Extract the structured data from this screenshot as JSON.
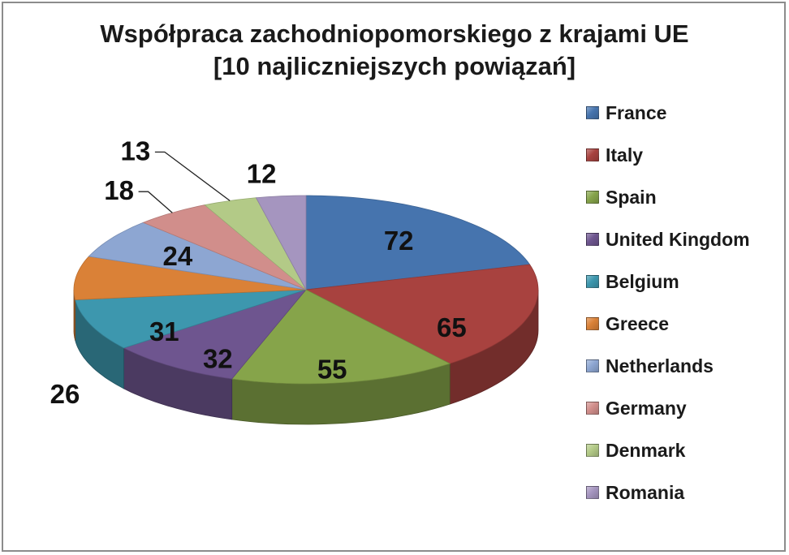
{
  "chart_data": {
    "type": "pie",
    "style": "3d",
    "title_lines": [
      "Współpraca zachodniopomorskiego z krajami UE",
      "[10 najliczniejszych powiązań]"
    ],
    "categories": [
      "France",
      "Italy",
      "Spain",
      "United Kingdom",
      "Belgium",
      "Greece",
      "Netherlands",
      "Germany",
      "Denmark",
      "Romania"
    ],
    "values": [
      72,
      65,
      55,
      32,
      31,
      26,
      24,
      18,
      13,
      12
    ],
    "colors": [
      "#4674ae",
      "#a8423f",
      "#86a44a",
      "#6e558f",
      "#3d97ae",
      "#da8137",
      "#8da6d2",
      "#d18e8b",
      "#b3ca87",
      "#a595bf"
    ],
    "legend_position": "right"
  }
}
